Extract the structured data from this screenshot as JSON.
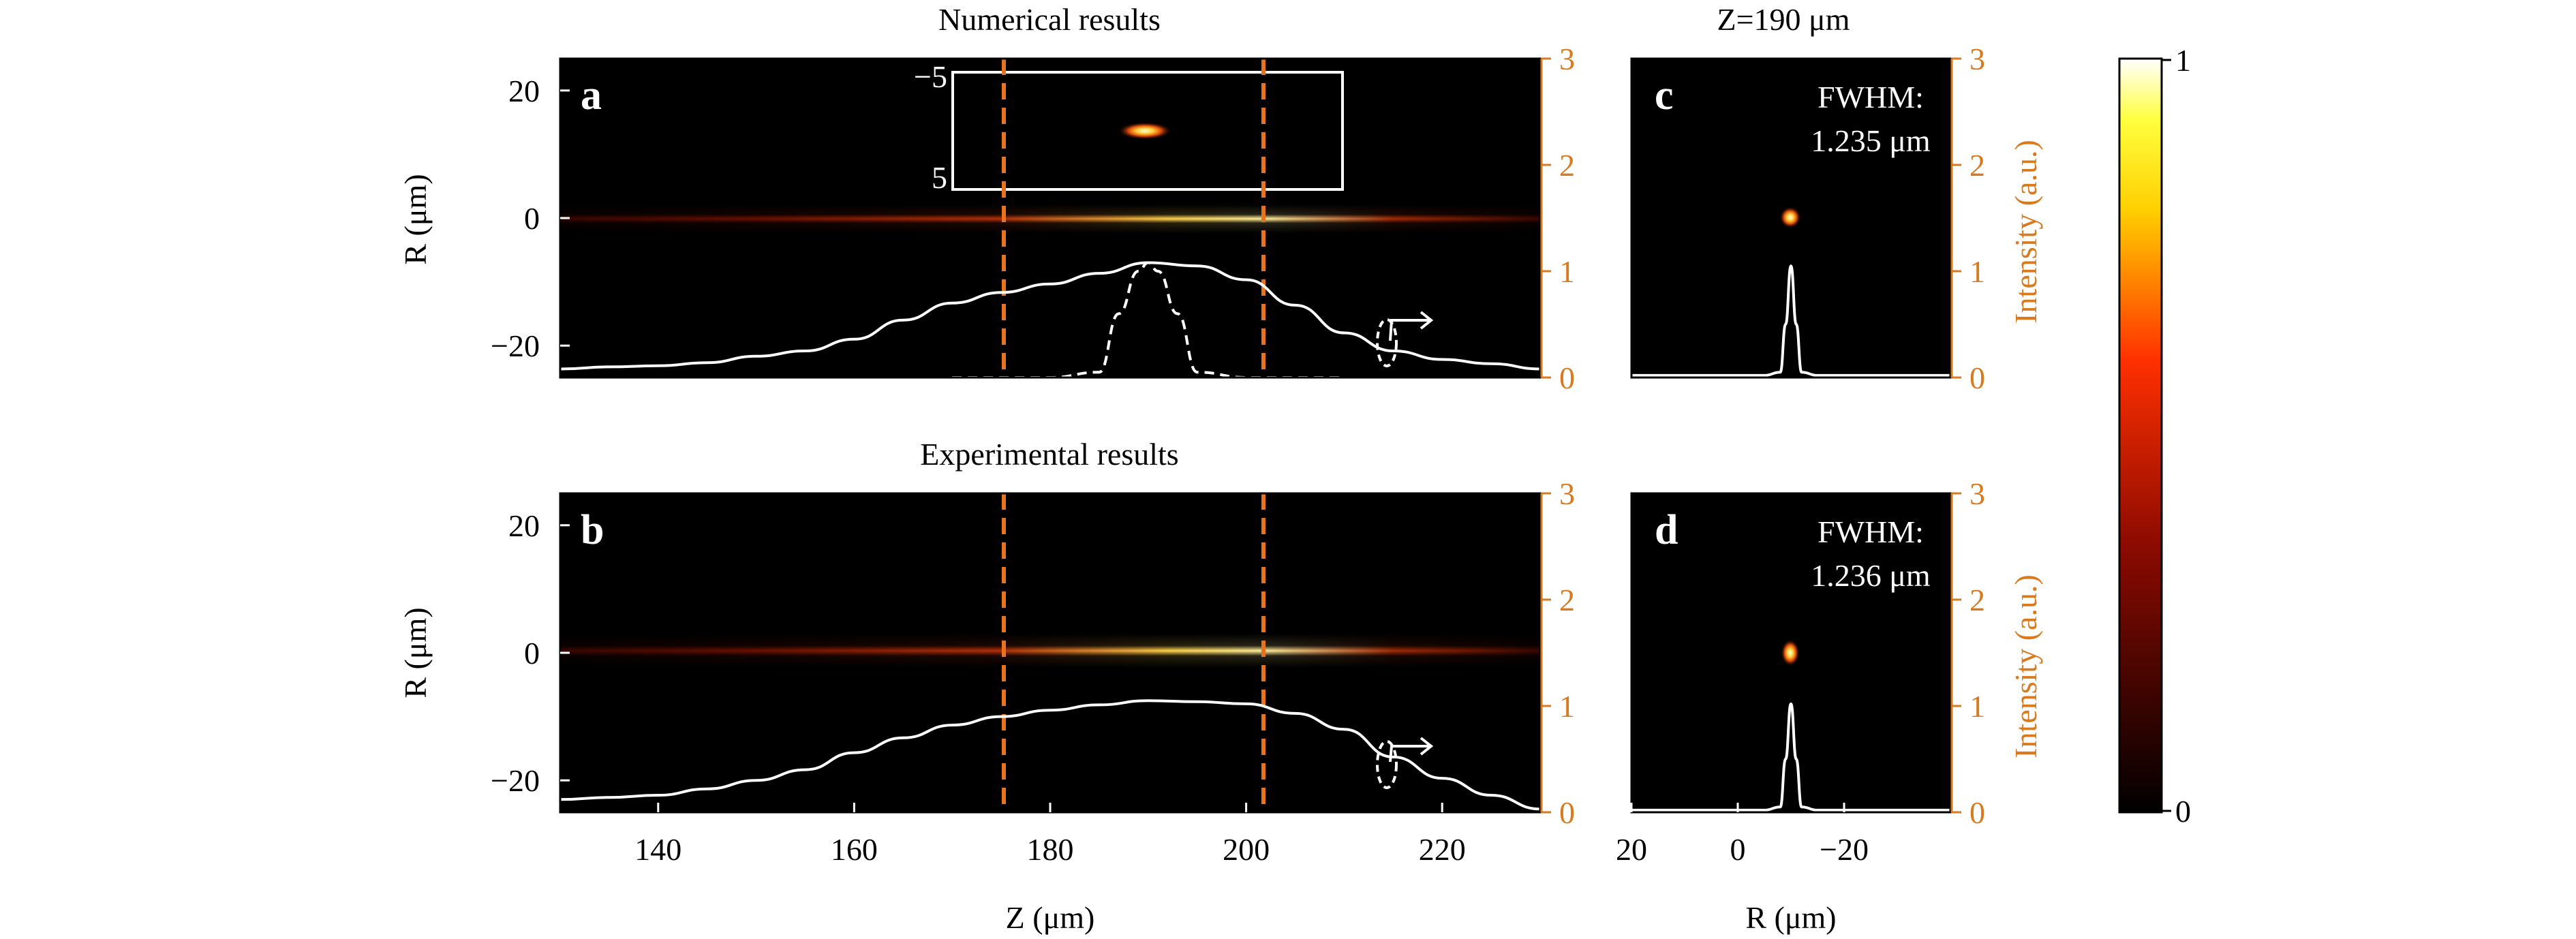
{
  "titles": {
    "top": "Numerical results",
    "middle": "Experimental results",
    "right": "Z=190 μm"
  },
  "colors": {
    "accent_axis": "#d97a1f",
    "dashed_marker": "#e8731f",
    "curve": "#ffffff",
    "background": "#000000"
  },
  "chart_data": [
    {
      "panel": "a",
      "type": "heatmap",
      "title": "Numerical results",
      "xlabel": "",
      "ylabel": "R (μm)",
      "xlim": [
        130,
        230
      ],
      "ylim": [
        -25,
        25
      ],
      "yticks": [
        20,
        0,
        -20
      ],
      "right_axis": {
        "label": "",
        "ylim": [
          0,
          3
        ],
        "ticks": [
          0,
          1,
          2,
          3
        ]
      },
      "vlines": [
        176,
        202
      ],
      "inset": {
        "yticks": [
          "-5",
          "5"
        ]
      },
      "series": [
        {
          "style": "solid",
          "x": [
            130,
            135,
            140,
            145,
            150,
            155,
            160,
            165,
            170,
            175,
            180,
            185,
            190,
            195,
            200,
            205,
            210,
            215,
            220,
            225,
            230
          ],
          "y": [
            0.08,
            0.1,
            0.11,
            0.14,
            0.2,
            0.25,
            0.36,
            0.54,
            0.7,
            0.8,
            0.88,
            0.98,
            1.08,
            1.05,
            0.92,
            0.68,
            0.42,
            0.25,
            0.17,
            0.13,
            0.08
          ]
        },
        {
          "style": "dashed",
          "x": [
            170,
            175,
            180,
            185,
            187,
            189,
            190,
            191,
            193,
            195,
            200,
            205,
            210
          ],
          "y": [
            0,
            0,
            0,
            0.05,
            0.6,
            1.0,
            1.08,
            1.0,
            0.6,
            0.05,
            0,
            0,
            0
          ]
        }
      ]
    },
    {
      "panel": "b",
      "type": "heatmap",
      "title": "Experimental results",
      "xlabel": "Z (μm)",
      "ylabel": "R (μm)",
      "xlim": [
        130,
        230
      ],
      "ylim": [
        -25,
        25
      ],
      "xticks": [
        140,
        160,
        180,
        200,
        220
      ],
      "yticks": [
        20,
        0,
        -20
      ],
      "right_axis": {
        "label": "",
        "ylim": [
          0,
          3
        ],
        "ticks": [
          0,
          1,
          2,
          3
        ]
      },
      "vlines": [
        176,
        202
      ],
      "series": [
        {
          "style": "solid",
          "x": [
            130,
            135,
            140,
            145,
            150,
            155,
            160,
            165,
            170,
            175,
            180,
            185,
            190,
            195,
            200,
            205,
            210,
            215,
            220,
            225,
            230
          ],
          "y": [
            0.12,
            0.14,
            0.16,
            0.22,
            0.3,
            0.4,
            0.56,
            0.7,
            0.82,
            0.9,
            0.96,
            1.01,
            1.05,
            1.04,
            1.02,
            0.93,
            0.78,
            0.52,
            0.32,
            0.16,
            0.03
          ]
        }
      ]
    },
    {
      "panel": "c",
      "type": "heatmap",
      "title": "Z=190 μm",
      "xlabel": "",
      "ylabel": "",
      "right_axis": {
        "label": "Intensity (a.u.)",
        "ylim": [
          0,
          3
        ],
        "ticks": [
          0,
          1,
          2,
          3
        ]
      },
      "annotation": [
        "FWHM:",
        "1.235 μm"
      ],
      "series": [
        {
          "style": "solid",
          "x": [
            20,
            0,
            -5,
            -8,
            -9,
            -10,
            -11,
            -12,
            -15,
            -20,
            -40
          ],
          "y": [
            0.02,
            0.02,
            0.02,
            0.05,
            0.5,
            1.05,
            0.5,
            0.05,
            0.02,
            0.02,
            0.02
          ]
        }
      ]
    },
    {
      "panel": "d",
      "type": "heatmap",
      "title": "",
      "xlabel": "R (μm)",
      "ylabel": "",
      "xlim": [
        20,
        -40
      ],
      "xticks": [
        "20",
        "0",
        "−20"
      ],
      "right_axis": {
        "label": "Intensity (a.u.)",
        "ylim": [
          0,
          3
        ],
        "ticks": [
          0,
          1,
          2,
          3
        ]
      },
      "annotation": [
        "FWHM:",
        "1.236 μm"
      ],
      "series": [
        {
          "style": "solid",
          "x": [
            20,
            0,
            -5,
            -8,
            -9,
            -10,
            -11,
            -12,
            -15,
            -20,
            -40
          ],
          "y": [
            0.02,
            0.02,
            0.02,
            0.05,
            0.5,
            1.02,
            0.5,
            0.05,
            0.02,
            0.02,
            0.02
          ]
        }
      ]
    }
  ],
  "colorbar": {
    "max_label": "1",
    "min_label": "0"
  }
}
